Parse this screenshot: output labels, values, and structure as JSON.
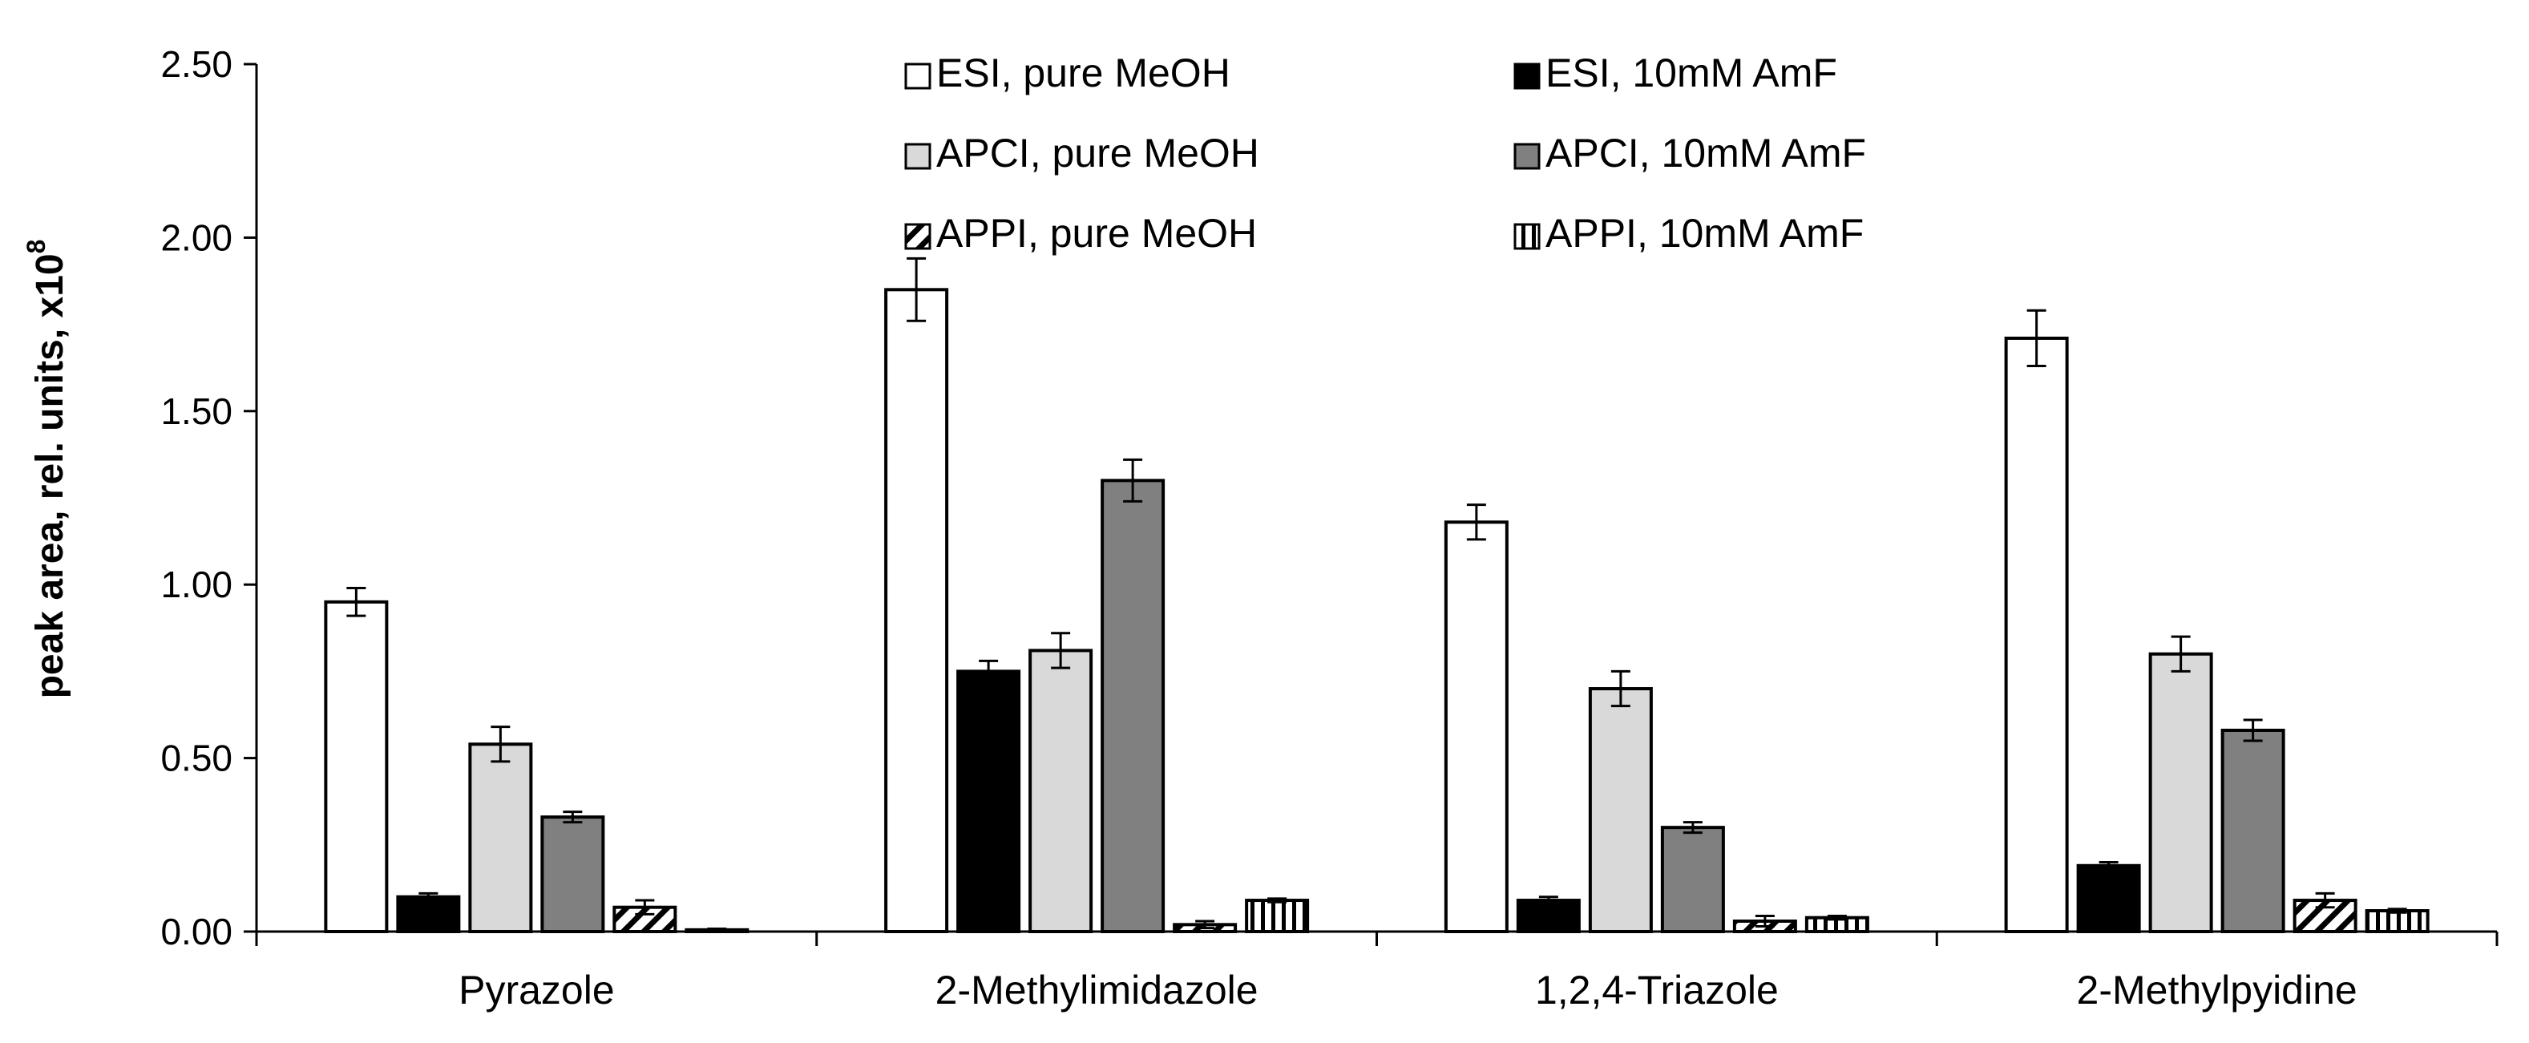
{
  "chart_data": {
    "type": "bar",
    "title": "",
    "xlabel": "",
    "ylabel": "peak area, rel. units, x10",
    "ylabel_superscript": "8",
    "ylim": [
      0,
      2.5
    ],
    "yticks": [
      "0.00",
      "0.50",
      "1.00",
      "1.50",
      "2.00",
      "2.50"
    ],
    "grid": false,
    "legend_position": "top-center",
    "categories": [
      "Pyrazole",
      "2-Methylimidazole",
      "1,2,4-Triazole",
      "2-Methylpyidine"
    ],
    "series": [
      {
        "name": "ESI, pure MeOH",
        "style": "white",
        "values": [
          0.95,
          1.85,
          1.18,
          1.71
        ],
        "errors": [
          0.04,
          0.09,
          0.05,
          0.08
        ]
      },
      {
        "name": "ESI, 10mM AmF",
        "style": "black",
        "values": [
          0.1,
          0.75,
          0.09,
          0.19
        ],
        "errors": [
          0.01,
          0.03,
          0.01,
          0.01
        ]
      },
      {
        "name": "APCI, pure MeOH",
        "style": "lightgray",
        "values": [
          0.54,
          0.81,
          0.7,
          0.8
        ],
        "errors": [
          0.05,
          0.05,
          0.05,
          0.05
        ]
      },
      {
        "name": "APCI, 10mM AmF",
        "style": "darkgray",
        "values": [
          0.33,
          1.3,
          0.3,
          0.58
        ],
        "errors": [
          0.015,
          0.06,
          0.015,
          0.03
        ]
      },
      {
        "name": "APPI, pure MeOH",
        "style": "diagonal",
        "values": [
          0.07,
          0.02,
          0.03,
          0.09
        ],
        "errors": [
          0.02,
          0.01,
          0.015,
          0.02
        ]
      },
      {
        "name": "APPI, 10mM AmF",
        "style": "vertical",
        "values": [
          0.005,
          0.09,
          0.04,
          0.06
        ],
        "errors": [
          0.003,
          0.005,
          0.005,
          0.005
        ]
      }
    ]
  }
}
